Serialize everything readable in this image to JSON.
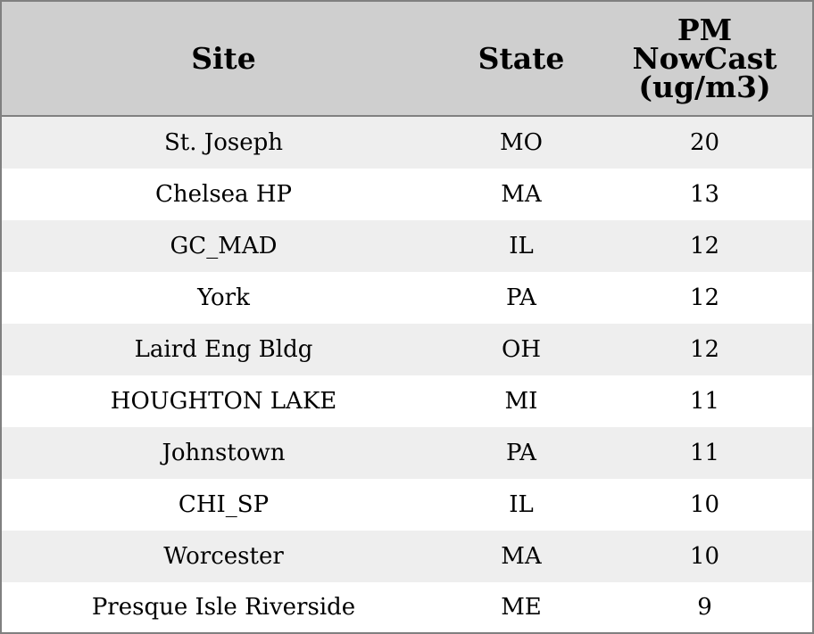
{
  "chart_data": {
    "type": "table",
    "columns": [
      "Site",
      "State",
      "PM NowCast (ug/m3)"
    ],
    "header_lines": {
      "site": [
        "Site"
      ],
      "state": [
        "State"
      ],
      "pm": [
        "PM",
        "NowCast",
        "(ug/m3)"
      ]
    },
    "rows": [
      {
        "site": "St. Joseph",
        "state": "MO",
        "pm": "20"
      },
      {
        "site": "Chelsea HP",
        "state": "MA",
        "pm": "13"
      },
      {
        "site": "GC_MAD",
        "state": "IL",
        "pm": "12"
      },
      {
        "site": "York",
        "state": "PA",
        "pm": "12"
      },
      {
        "site": "Laird Eng Bldg",
        "state": "OH",
        "pm": "12"
      },
      {
        "site": "HOUGHTON LAKE",
        "state": "MI",
        "pm": "11"
      },
      {
        "site": "Johnstown",
        "state": "PA",
        "pm": "11"
      },
      {
        "site": "CHI_SP",
        "state": "IL",
        "pm": "10"
      },
      {
        "site": "Worcester",
        "state": "MA",
        "pm": "10"
      },
      {
        "site": "Presque Isle Riverside",
        "state": "ME",
        "pm": "9"
      }
    ],
    "colors": {
      "header_background": "#cfcfcf",
      "row_stripe": "#eeeeee",
      "row_plain": "#ffffff",
      "border": "#808080"
    }
  }
}
